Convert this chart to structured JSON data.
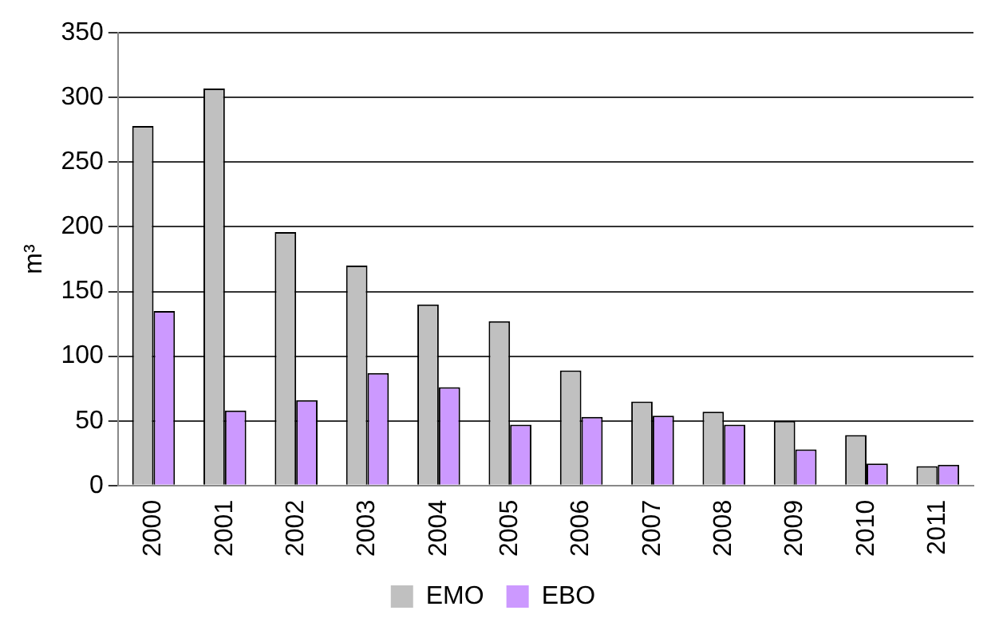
{
  "chart_data": {
    "type": "bar",
    "ylabel": "m³",
    "categories": [
      "2000",
      "2001",
      "2002",
      "2003",
      "2004",
      "2005",
      "2006",
      "2007",
      "2008",
      "2009",
      "2010",
      "2011"
    ],
    "series": [
      {
        "name": "EMO",
        "color": "#c0c0c0",
        "values": [
          278,
          307,
          196,
          170,
          140,
          127,
          89,
          65,
          57,
          50,
          39,
          15
        ]
      },
      {
        "name": "EBO",
        "color": "#cc99ff",
        "values": [
          135,
          58,
          66,
          87,
          76,
          47,
          53,
          54,
          47,
          28,
          17,
          16
        ]
      }
    ],
    "ylim": [
      0,
      350
    ],
    "yticks": [
      0,
      50,
      100,
      150,
      200,
      250,
      300,
      350
    ],
    "grid": "y",
    "legend": "bottom"
  }
}
